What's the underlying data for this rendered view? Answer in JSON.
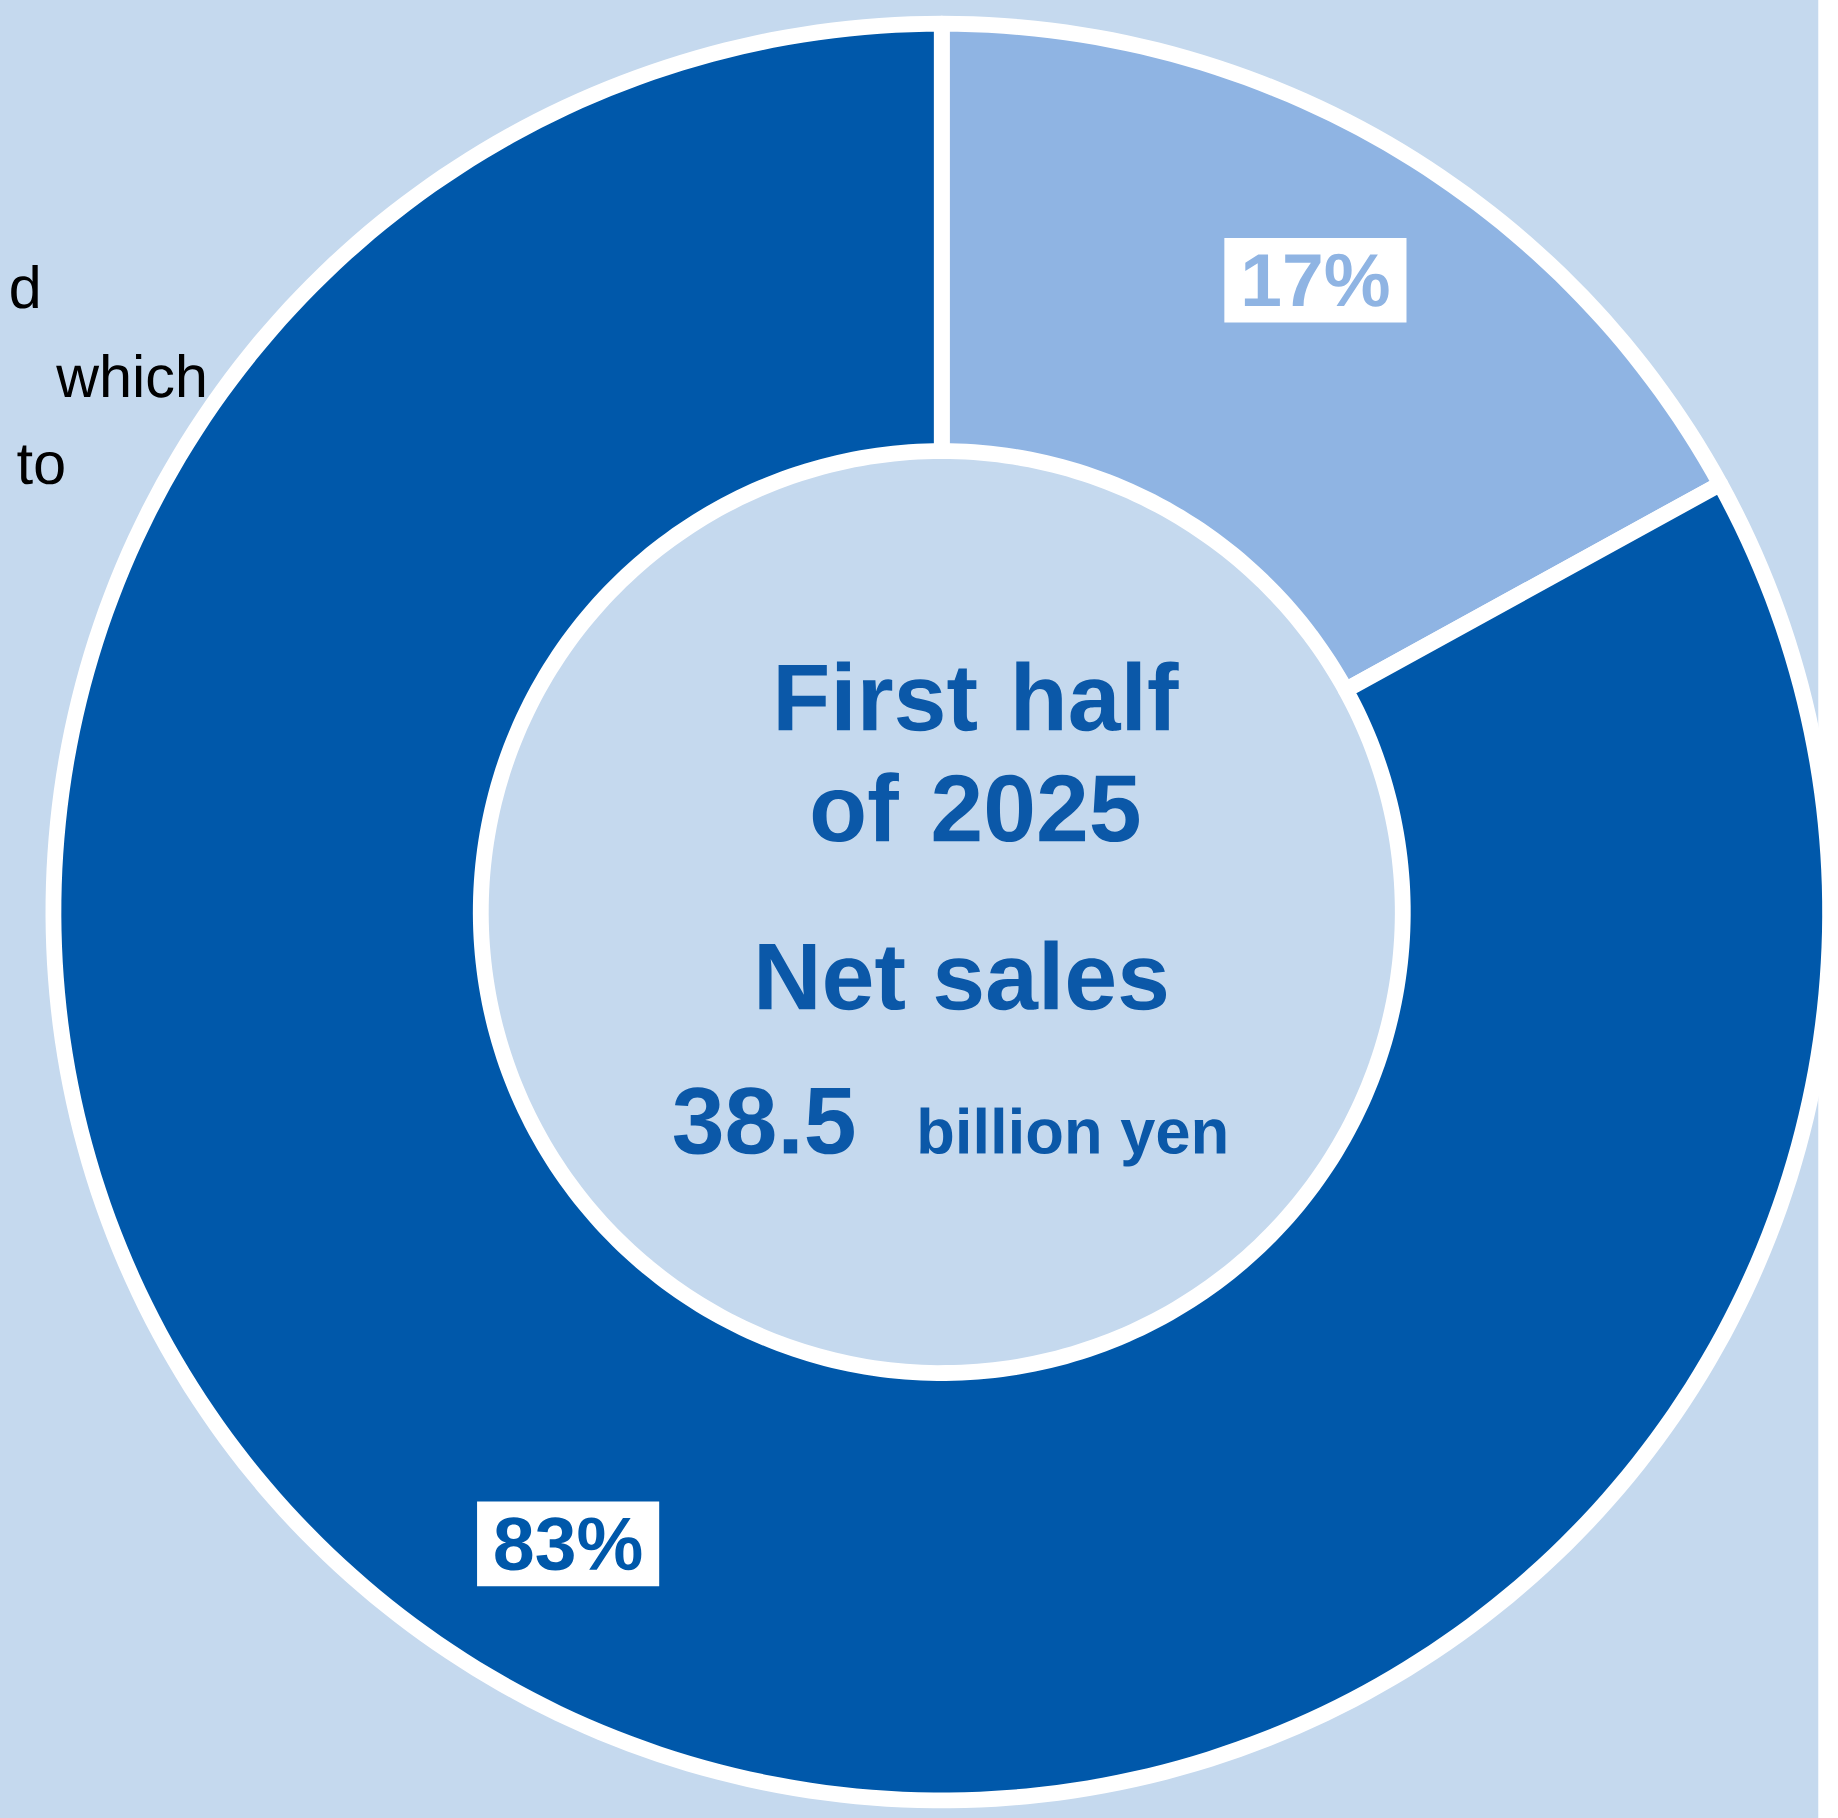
{
  "chart_data": {
    "type": "donut",
    "title": "First half of 2025",
    "subtitle": "Net sales",
    "annotations": [
      "38.5",
      "billion yen",
      "d",
      "which",
      "to"
    ],
    "categories": [
      null,
      null
    ],
    "values": [
      17,
      83
    ],
    "colors": [
      "#8fb4e3",
      "#0058aa"
    ],
    "value_labels": [
      "17%",
      "83%"
    ]
  }
}
